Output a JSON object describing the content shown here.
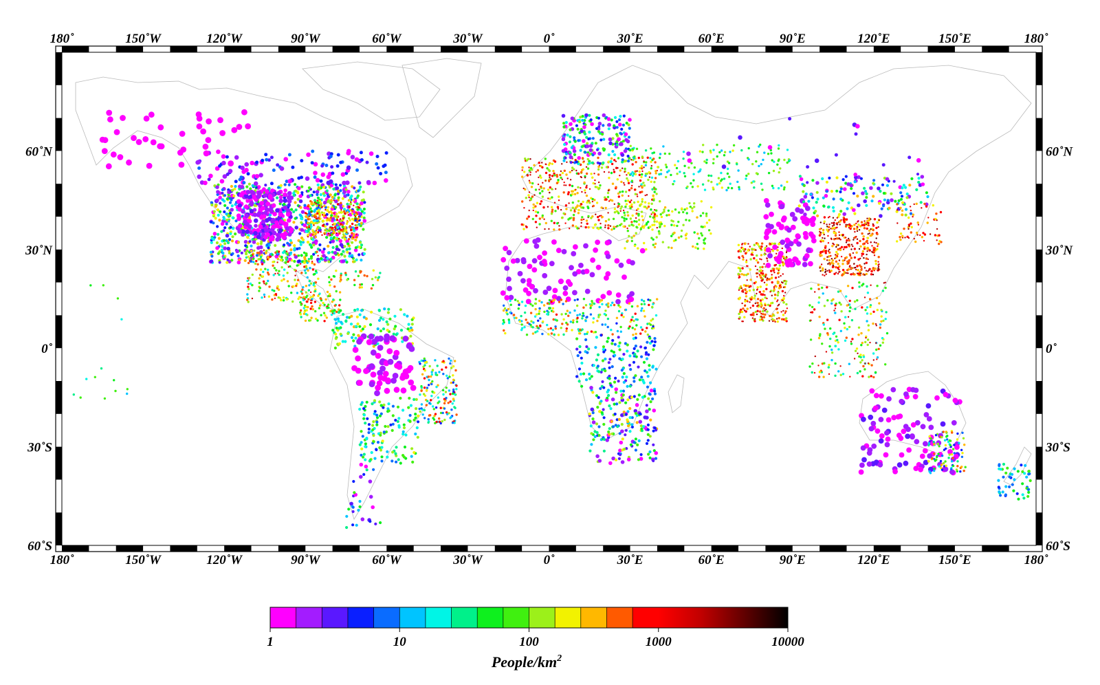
{
  "map": {
    "projection": "equirectangular",
    "lon_range": [
      -180,
      180
    ],
    "lat_range": [
      -60,
      90
    ],
    "frame_style": "alternating black-white graticule border",
    "coastline_color": "#b9b9b9"
  },
  "axes": {
    "lon_labels": [
      {
        "lon": -180,
        "text": "180˚"
      },
      {
        "lon": -150,
        "text": "150˚W"
      },
      {
        "lon": -120,
        "text": "120˚W"
      },
      {
        "lon": -90,
        "text": "90˚W"
      },
      {
        "lon": -60,
        "text": "60˚W"
      },
      {
        "lon": -30,
        "text": "30˚W"
      },
      {
        "lon": 0,
        "text": "0˚"
      },
      {
        "lon": 30,
        "text": "30˚E"
      },
      {
        "lon": 60,
        "text": "60˚E"
      },
      {
        "lon": 90,
        "text": "90˚E"
      },
      {
        "lon": 120,
        "text": "120˚E"
      },
      {
        "lon": 150,
        "text": "150˚E"
      },
      {
        "lon": 180,
        "text": "180˚"
      }
    ],
    "lat_labels": [
      {
        "lat": 60,
        "text": "60˚N"
      },
      {
        "lat": 30,
        "text": "30˚N"
      },
      {
        "lat": 0,
        "text": "0˚"
      },
      {
        "lat": -30,
        "text": "30˚S"
      },
      {
        "lat": -60,
        "text": "60˚S"
      }
    ]
  },
  "colorbar": {
    "title_base": "People/km",
    "title_sup": "2",
    "scale": "log",
    "range": [
      1,
      10000
    ],
    "tick_labels": [
      {
        "value": 1,
        "text": "1"
      },
      {
        "value": 10,
        "text": "10"
      },
      {
        "value": 100,
        "text": "100"
      },
      {
        "value": 1000,
        "text": "1000"
      },
      {
        "value": 10000,
        "text": "10000"
      }
    ],
    "discrete_colors": [
      "#ff00ff",
      "#a31cff",
      "#5a18ff",
      "#0a1fff",
      "#0a6cff",
      "#00c4ff",
      "#00f5e6",
      "#00f08a",
      "#0ef01e",
      "#40f010",
      "#9cf01a",
      "#f2f200",
      "#ffb800",
      "#ff5a00",
      "#ff0000"
    ],
    "gradient_stops": [
      "#ff0000",
      "#c00000",
      "#600000",
      "#000000"
    ]
  },
  "stations": {
    "description": "colored dots, color = population density",
    "regions": [
      {
        "lon": [
          -125,
          -68
        ],
        "lat": [
          26,
          50
        ],
        "n": 900,
        "d": [
          1,
          400
        ],
        "size": 5
      },
      {
        "lon": [
          -115,
          -95
        ],
        "lat": [
          33,
          48
        ],
        "n": 180,
        "d": [
          1,
          3
        ],
        "size": 6
      },
      {
        "lon": [
          -90,
          -70
        ],
        "lat": [
          33,
          45
        ],
        "n": 200,
        "d": [
          100,
          2000
        ],
        "size": 4
      },
      {
        "lon": [
          -130,
          -60
        ],
        "lat": [
          50,
          60
        ],
        "n": 120,
        "d": [
          1,
          8
        ],
        "size": 6
      },
      {
        "lon": [
          -165,
          -110
        ],
        "lat": [
          55,
          72
        ],
        "n": 40,
        "d": [
          1,
          1.5
        ],
        "size": 8
      },
      {
        "lon": [
          -112,
          -85
        ],
        "lat": [
          14,
          30
        ],
        "n": 200,
        "d": [
          10,
          2000
        ],
        "size": 4
      },
      {
        "lon": [
          -92,
          -77
        ],
        "lat": [
          8,
          18
        ],
        "n": 80,
        "d": [
          20,
          800
        ],
        "size": 4
      },
      {
        "lon": [
          -82,
          -62
        ],
        "lat": [
          18,
          24
        ],
        "n": 40,
        "d": [
          30,
          800
        ],
        "size": 4
      },
      {
        "lon": [
          -80,
          -50
        ],
        "lat": [
          0,
          12
        ],
        "n": 120,
        "d": [
          10,
          300
        ],
        "size": 5
      },
      {
        "lon": [
          -72,
          -50
        ],
        "lat": [
          -14,
          4
        ],
        "n": 70,
        "d": [
          1,
          2
        ],
        "size": 8
      },
      {
        "lon": [
          -48,
          -34
        ],
        "lat": [
          -23,
          -3
        ],
        "n": 160,
        "d": [
          5,
          1000
        ],
        "size": 4
      },
      {
        "lon": [
          -70,
          -48
        ],
        "lat": [
          -35,
          -15
        ],
        "n": 140,
        "d": [
          5,
          200
        ],
        "size": 5
      },
      {
        "lon": [
          -75,
          -62
        ],
        "lat": [
          -55,
          -35
        ],
        "n": 30,
        "d": [
          1,
          100
        ],
        "size": 5
      },
      {
        "lon": [
          -10,
          40
        ],
        "lat": [
          36,
          58
        ],
        "n": 500,
        "d": [
          50,
          3000
        ],
        "size": 4
      },
      {
        "lon": [
          5,
          30
        ],
        "lat": [
          56,
          71
        ],
        "n": 200,
        "d": [
          1,
          120
        ],
        "size": 5
      },
      {
        "lon": [
          30,
          90
        ],
        "lat": [
          48,
          62
        ],
        "n": 180,
        "d": [
          10,
          200
        ],
        "size": 4
      },
      {
        "lon": [
          25,
          60
        ],
        "lat": [
          30,
          45
        ],
        "n": 160,
        "d": [
          50,
          300
        ],
        "size": 4
      },
      {
        "lon": [
          -17,
          35
        ],
        "lat": [
          14,
          33
        ],
        "n": 90,
        "d": [
          1,
          2.5
        ],
        "size": 7
      },
      {
        "lon": [
          -17,
          40
        ],
        "lat": [
          4,
          15
        ],
        "n": 260,
        "d": [
          5,
          800
        ],
        "size": 4
      },
      {
        "lon": [
          10,
          40
        ],
        "lat": [
          -12,
          4
        ],
        "n": 140,
        "d": [
          3,
          100
        ],
        "size": 5
      },
      {
        "lon": [
          15,
          40
        ],
        "lat": [
          -35,
          -12
        ],
        "n": 200,
        "d": [
          1,
          400
        ],
        "size": 5
      },
      {
        "lon": [
          70,
          88
        ],
        "lat": [
          8,
          32
        ],
        "n": 380,
        "d": [
          100,
          3000
        ],
        "size": 4
      },
      {
        "lon": [
          80,
          98
        ],
        "lat": [
          25,
          45
        ],
        "n": 80,
        "d": [
          1,
          2
        ],
        "size": 7
      },
      {
        "lon": [
          100,
          122
        ],
        "lat": [
          22,
          40
        ],
        "n": 380,
        "d": [
          200,
          5000
        ],
        "size": 4
      },
      {
        "lon": [
          92,
          140
        ],
        "lat": [
          40,
          53
        ],
        "n": 150,
        "d": [
          1,
          300
        ],
        "size": 5
      },
      {
        "lon": [
          96,
          125
        ],
        "lat": [
          -9,
          20
        ],
        "n": 200,
        "d": [
          10,
          2500
        ],
        "size": 4
      },
      {
        "lon": [
          128,
          145
        ],
        "lat": [
          31,
          44
        ],
        "n": 60,
        "d": [
          200,
          3000
        ],
        "size": 4
      },
      {
        "lon": [
          115,
          152
        ],
        "lat": [
          -38,
          -12
        ],
        "n": 110,
        "d": [
          1,
          3
        ],
        "size": 7
      },
      {
        "lon": [
          140,
          154
        ],
        "lat": [
          -38,
          -25
        ],
        "n": 90,
        "d": [
          3,
          600
        ],
        "size": 4
      },
      {
        "lon": [
          166,
          178
        ],
        "lat": [
          -46,
          -35
        ],
        "n": 50,
        "d": [
          5,
          100
        ],
        "size": 5
      },
      {
        "lon": [
          50,
          175
        ],
        "lat": [
          55,
          72
        ],
        "n": 15,
        "d": [
          1,
          4
        ],
        "size": 6
      },
      {
        "lon": [
          -178,
          -155
        ],
        "lat": [
          -20,
          22
        ],
        "n": 14,
        "d": [
          10,
          100
        ],
        "size": 4
      }
    ]
  }
}
